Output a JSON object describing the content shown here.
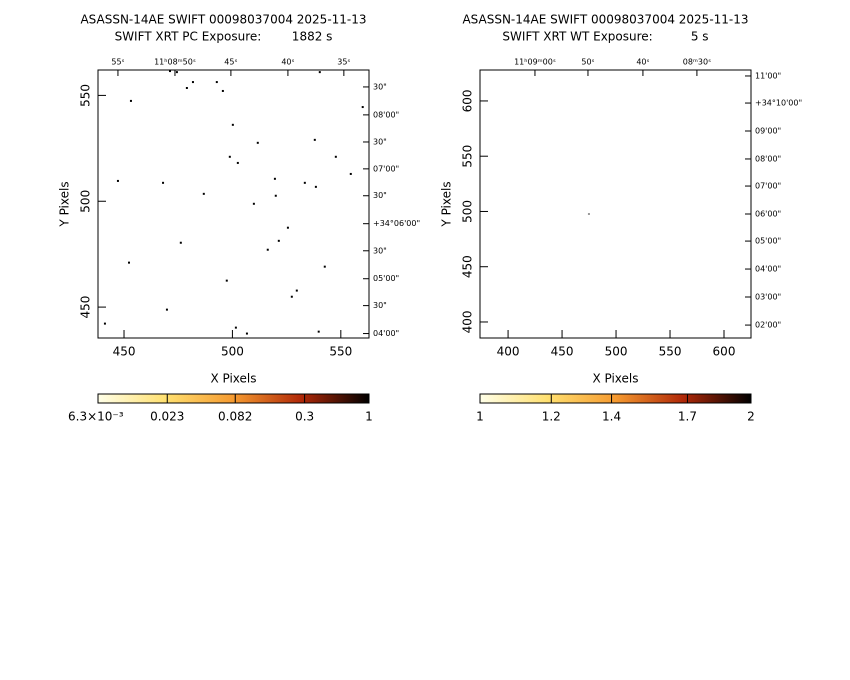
{
  "chart_data": [
    {
      "type": "image",
      "title": "ASASSN-14AE SWIFT 00098037004 2025-11-13",
      "subtitle": "SWIFT XRT PC Exposure:        1882 s",
      "x_label": "X Pixels",
      "y_label": "Y Pixels",
      "xlim": [
        438,
        563
      ],
      "ylim": [
        435.4,
        562
      ],
      "xticks": [
        450,
        500,
        550
      ],
      "yticks": [
        450,
        500,
        550
      ],
      "ra_ticks": [
        {
          "value": 447.2,
          "label": "55ˢ"
        },
        {
          "value": 473.5,
          "label": "11ʰ08ᵐ50ˢ"
        },
        {
          "value": 499.3,
          "label": "45ˢ"
        },
        {
          "value": 525.6,
          "label": "40ˢ"
        },
        {
          "value": 551.4,
          "label": "35ˢ"
        }
      ],
      "dec_ticks": [
        {
          "value": 554.0,
          "label": "30\""
        },
        {
          "value": 540.8,
          "label": "08'00\""
        },
        {
          "value": 528.0,
          "label": "30\""
        },
        {
          "value": 515.3,
          "label": "07'00\""
        },
        {
          "value": 502.6,
          "label": "30\""
        },
        {
          "value": 489.4,
          "label": "+34°06'00\""
        },
        {
          "value": 476.6,
          "label": "30\""
        },
        {
          "value": 463.4,
          "label": "05'00\""
        },
        {
          "value": 450.7,
          "label": "30\""
        },
        {
          "value": 437.5,
          "label": "04'00\""
        }
      ],
      "point_color": "#000000",
      "x": [
        441.2,
        453.2,
        447.2,
        452.3,
        468.0,
        469.8,
        471.2,
        474.4,
        476.2,
        479.0,
        481.8,
        486.8,
        492.8,
        495.6,
        497.4,
        500.2,
        498.8,
        502.5,
        501.6,
        506.7,
        509.9,
        511.7,
        516.3,
        519.6,
        520.0,
        521.4,
        525.6,
        527.4,
        529.7,
        533.4,
        538.0,
        538.5,
        539.8,
        540.3,
        542.6,
        547.7,
        554.6,
        560.1
      ],
      "y": [
        442.2,
        547.4,
        509.6,
        471.0,
        508.7,
        448.8,
        561.5,
        561.0,
        480.4,
        553.5,
        556.3,
        503.5,
        556.3,
        552.1,
        462.5,
        536.1,
        521.0,
        518.1,
        440.3,
        437.5,
        498.8,
        527.6,
        477.1,
        510.6,
        502.6,
        481.3,
        487.5,
        454.9,
        457.8,
        508.7,
        529.0,
        506.8,
        438.4,
        561.0,
        469.1,
        521.0,
        512.9,
        544.5
      ],
      "colorbar": {
        "log": true,
        "lim": [
          0.0063,
          1
        ],
        "ticks": [
          {
            "value": 0.0063,
            "label": "6.3×10⁻³"
          },
          0.023,
          0.082,
          0.3,
          1
        ]
      }
    },
    {
      "type": "image",
      "title": "ASASSN-14AE SWIFT 00098037004 2025-11-13",
      "subtitle": "SWIFT XRT WT Exposure:          5 s",
      "x_label": "X Pixels",
      "y_label": "Y Pixels",
      "xlim": [
        374,
        625
      ],
      "ylim": [
        385.5,
        628
      ],
      "xticks": [
        400,
        450,
        500,
        550,
        600
      ],
      "yticks": [
        400,
        450,
        500,
        550,
        600
      ],
      "ra_ticks": [
        {
          "value": 424.9,
          "label": "11ʰ09ᵐ00ˢ"
        },
        {
          "value": 474.0,
          "label": "50ˢ"
        },
        {
          "value": 524.9,
          "label": "40ˢ"
        },
        {
          "value": 574.9,
          "label": "08ᵐ30ˢ"
        }
      ],
      "dec_ticks": [
        {
          "value": 622.6,
          "label": "11'00\""
        },
        {
          "value": 598.1,
          "label": "+34°10'00\""
        },
        {
          "value": 572.8,
          "label": "09'00\""
        },
        {
          "value": 547.5,
          "label": "08'00\""
        },
        {
          "value": 523.0,
          "label": "07'00\""
        },
        {
          "value": 497.7,
          "label": "06'00\""
        },
        {
          "value": 473.2,
          "label": "05'00\""
        },
        {
          "value": 447.9,
          "label": "04'00\""
        },
        {
          "value": 422.6,
          "label": "03'00\""
        },
        {
          "value": 397.2,
          "label": "02'00\""
        }
      ],
      "point_color": "#999999",
      "x": [
        474.9
      ],
      "y": [
        497.7
      ],
      "colorbar": {
        "log": true,
        "lim": [
          1,
          2
        ],
        "ticks": [
          1,
          1.2,
          1.4,
          1.7,
          2
        ]
      }
    }
  ]
}
